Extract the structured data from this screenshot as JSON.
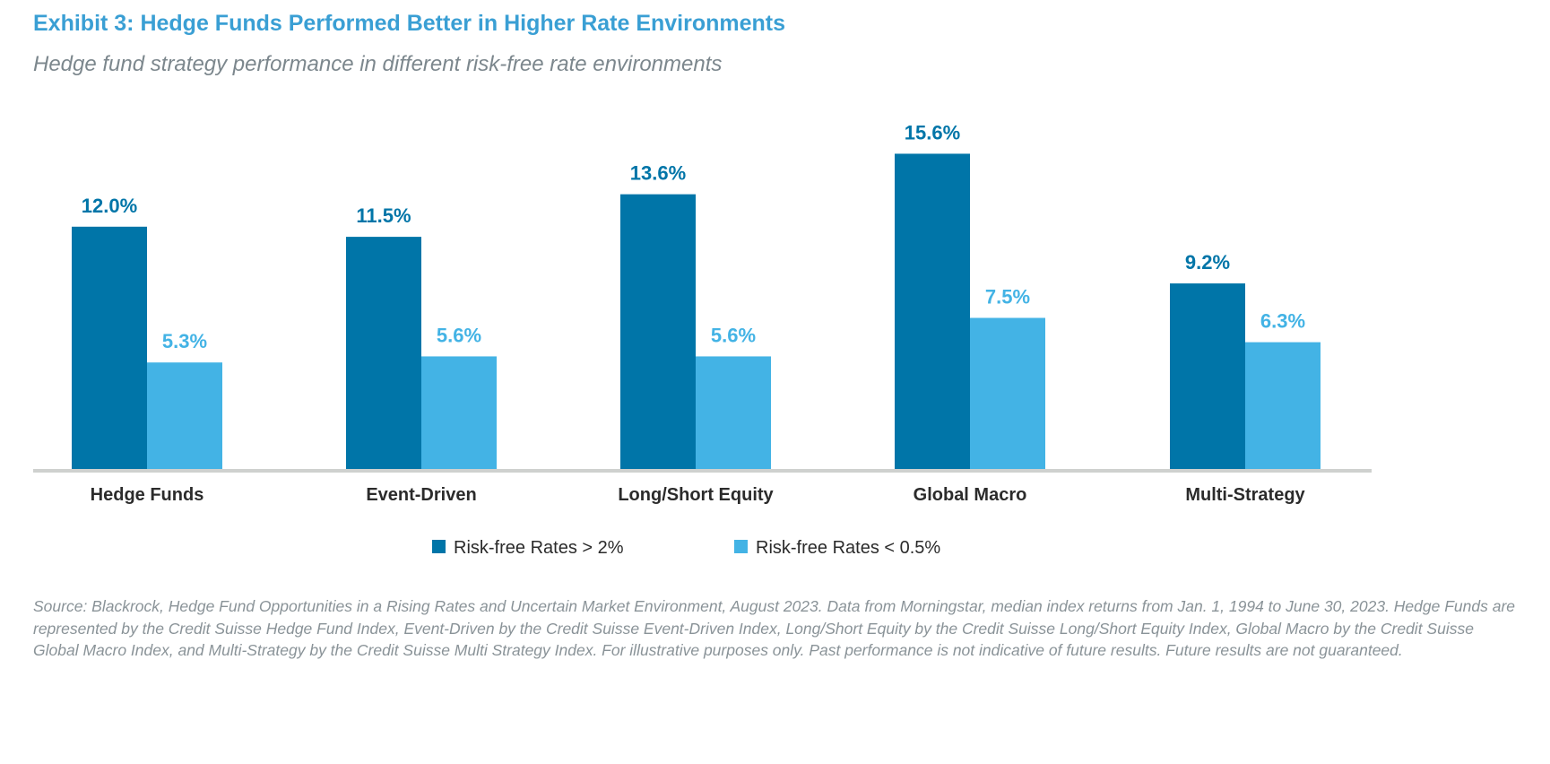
{
  "chart_data": {
    "type": "bar",
    "title": "Exhibit 3: Hedge Funds Performed Better in Higher Rate Environments",
    "subtitle": "Hedge fund strategy performance in different risk-free rate environments",
    "categories": [
      "Hedge Funds",
      "Event-Driven",
      "Long/Short Equity",
      "Global Macro",
      "Multi-Strategy"
    ],
    "series": [
      {
        "name": "Risk-free Rates > 2%",
        "values": [
          12.0,
          11.5,
          13.6,
          15.6,
          9.2
        ],
        "labels": [
          "12.0%",
          "11.5%",
          "13.6%",
          "15.6%",
          "9.2%"
        ],
        "color": "#0075a8"
      },
      {
        "name": "Risk-free Rates < 0.5%",
        "values": [
          5.3,
          5.6,
          5.6,
          7.5,
          6.3
        ],
        "labels": [
          "5.3%",
          "5.6%",
          "5.6%",
          "7.5%",
          "6.3%"
        ],
        "color": "#43b3e5"
      }
    ],
    "unit": "%",
    "ylim": [
      0,
      16
    ],
    "grid": false,
    "legend": "bottom-center",
    "source": "Source: Blackrock, Hedge Fund Opportunities in a Rising Rates and Uncertain Market Environment, August 2023. Data from Morningstar, median index returns from Jan. 1, 1994 to June 30, 2023. Hedge Funds are represented by the Credit Suisse Hedge Fund Index, Event-Driven by the Credit Suisse Event-Driven Index, Long/Short Equity by the Credit Suisse Long/Short Equity Index, Global Macro by the Credit Suisse Global Macro Index, and Multi-Strategy by the Credit Suisse Multi Strategy Index. For illustrative purposes only. Past performance is not indicative of future results. Future results are not guaranteed."
  }
}
